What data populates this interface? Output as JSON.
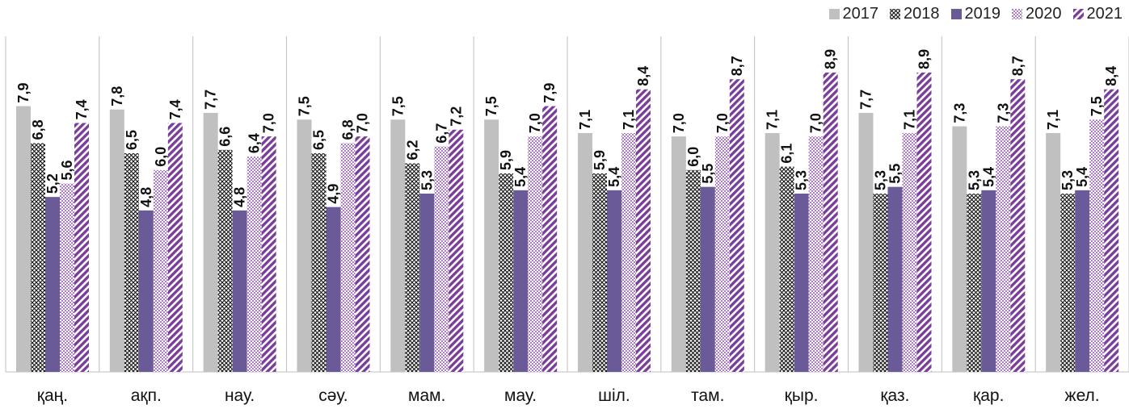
{
  "chart_data": {
    "type": "bar",
    "categories": [
      "қаң.",
      "ақп.",
      "нау.",
      "сәу.",
      "мам.",
      "мау.",
      "шіл.",
      "там.",
      "қыр.",
      "қаз.",
      "қар.",
      "жел."
    ],
    "series": [
      {
        "name": "2017",
        "values": [
          7.9,
          7.8,
          7.7,
          7.5,
          7.5,
          7.5,
          7.1,
          7.0,
          7.1,
          7.7,
          7.3,
          7.1
        ],
        "labels": [
          "7,9",
          "7,8",
          "7,7",
          "7,5",
          "7,5",
          "7,5",
          "7,1",
          "7,0",
          "7,1",
          "7,7",
          "7,3",
          "7,1"
        ]
      },
      {
        "name": "2018",
        "values": [
          6.8,
          6.5,
          6.6,
          6.5,
          6.2,
          5.9,
          5.9,
          6.0,
          6.1,
          5.3,
          5.3,
          5.3
        ],
        "labels": [
          "6,8",
          "6,5",
          "6,6",
          "6,5",
          "6,2",
          "5,9",
          "5,9",
          "6,0",
          "6,1",
          "5,3",
          "5,3",
          "5,3"
        ]
      },
      {
        "name": "2019",
        "values": [
          5.2,
          4.8,
          4.8,
          4.9,
          5.3,
          5.4,
          5.4,
          5.5,
          5.3,
          5.5,
          5.4,
          5.4
        ],
        "labels": [
          "5,2",
          "4,8",
          "4,8",
          "4,9",
          "5,3",
          "5,4",
          "5,4",
          "5,5",
          "5,3",
          "5,5",
          "5,4",
          "5,4"
        ]
      },
      {
        "name": "2020",
        "values": [
          5.6,
          6.0,
          6.4,
          6.8,
          6.7,
          7.0,
          7.1,
          7.0,
          7.0,
          7.1,
          7.3,
          7.5
        ],
        "labels": [
          "5,6",
          "6,0",
          "6,4",
          "6,8",
          "6,7",
          "7,0",
          "7,1",
          "7,0",
          "7,0",
          "7,1",
          "7,3",
          "7,5"
        ]
      },
      {
        "name": "2021",
        "values": [
          7.4,
          7.4,
          7.0,
          7.0,
          7.2,
          7.9,
          8.4,
          8.7,
          8.9,
          8.9,
          8.7,
          8.4
        ],
        "labels": [
          "7,4",
          "7,4",
          "7,0",
          "7,0",
          "7,2",
          "7,9",
          "8,4",
          "8,7",
          "8,9",
          "8,9",
          "8,7",
          "8,4"
        ]
      }
    ],
    "colors": {
      "2017": "#c0c0c0",
      "2018": "#111111",
      "2019": "#6a5a98",
      "2020": "#c29ad6",
      "2021": "#7a3e9a"
    },
    "ylim": [
      0,
      10
    ],
    "grid": false,
    "legend_position": "top-right"
  }
}
